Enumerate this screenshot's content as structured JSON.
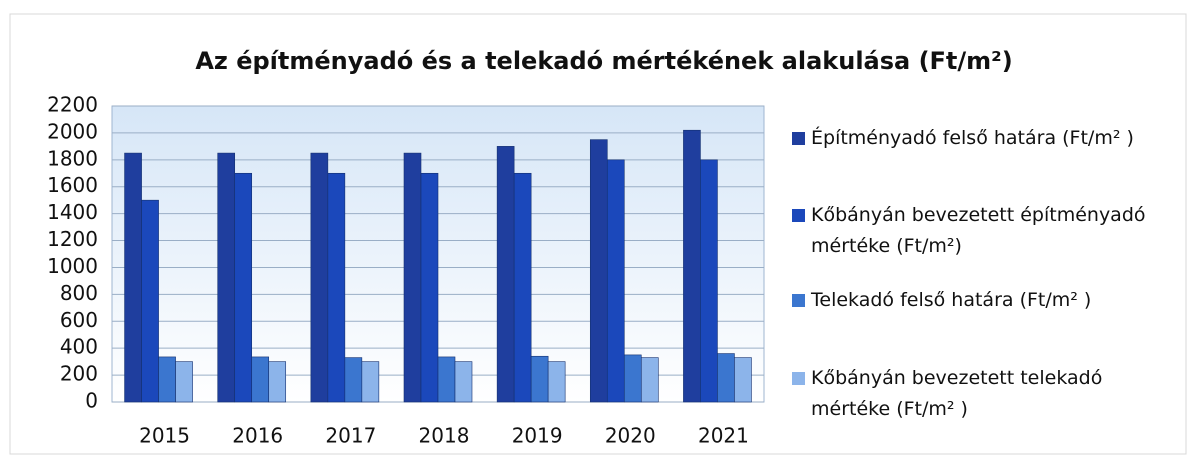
{
  "chart_data": {
    "type": "bar",
    "title": "Az építményadó és a telekadó mértékének alakulása (Ft/m²)",
    "categories": [
      "2015",
      "2016",
      "2017",
      "2018",
      "2019",
      "2020",
      "2021"
    ],
    "series": [
      {
        "name": "Építményadó felső határa (Ft/m² )",
        "color": "#1f3e9e",
        "values": [
          1850,
          1850,
          1850,
          1850,
          1900,
          1950,
          2020
        ]
      },
      {
        "name": "Kőbányán bevezetett építményadó mértéke (Ft/m²)",
        "color": "#1b48bb",
        "values": [
          1500,
          1700,
          1700,
          1700,
          1700,
          1800,
          1800
        ]
      },
      {
        "name": "Telekadó felső határa (Ft/m² )",
        "color": "#3b76cf",
        "values": [
          335,
          335,
          330,
          335,
          340,
          350,
          360
        ]
      },
      {
        "name": "Kőbányán bevezetett telekadó mértéke (Ft/m² )",
        "color": "#8cb4ea",
        "values": [
          300,
          300,
          300,
          300,
          300,
          330,
          330
        ]
      }
    ],
    "ylim": [
      0,
      2200
    ],
    "yticks": [
      0,
      200,
      400,
      600,
      800,
      1000,
      1200,
      1400,
      1600,
      1800,
      2000,
      2200
    ],
    "grid": true,
    "legend": "right"
  }
}
